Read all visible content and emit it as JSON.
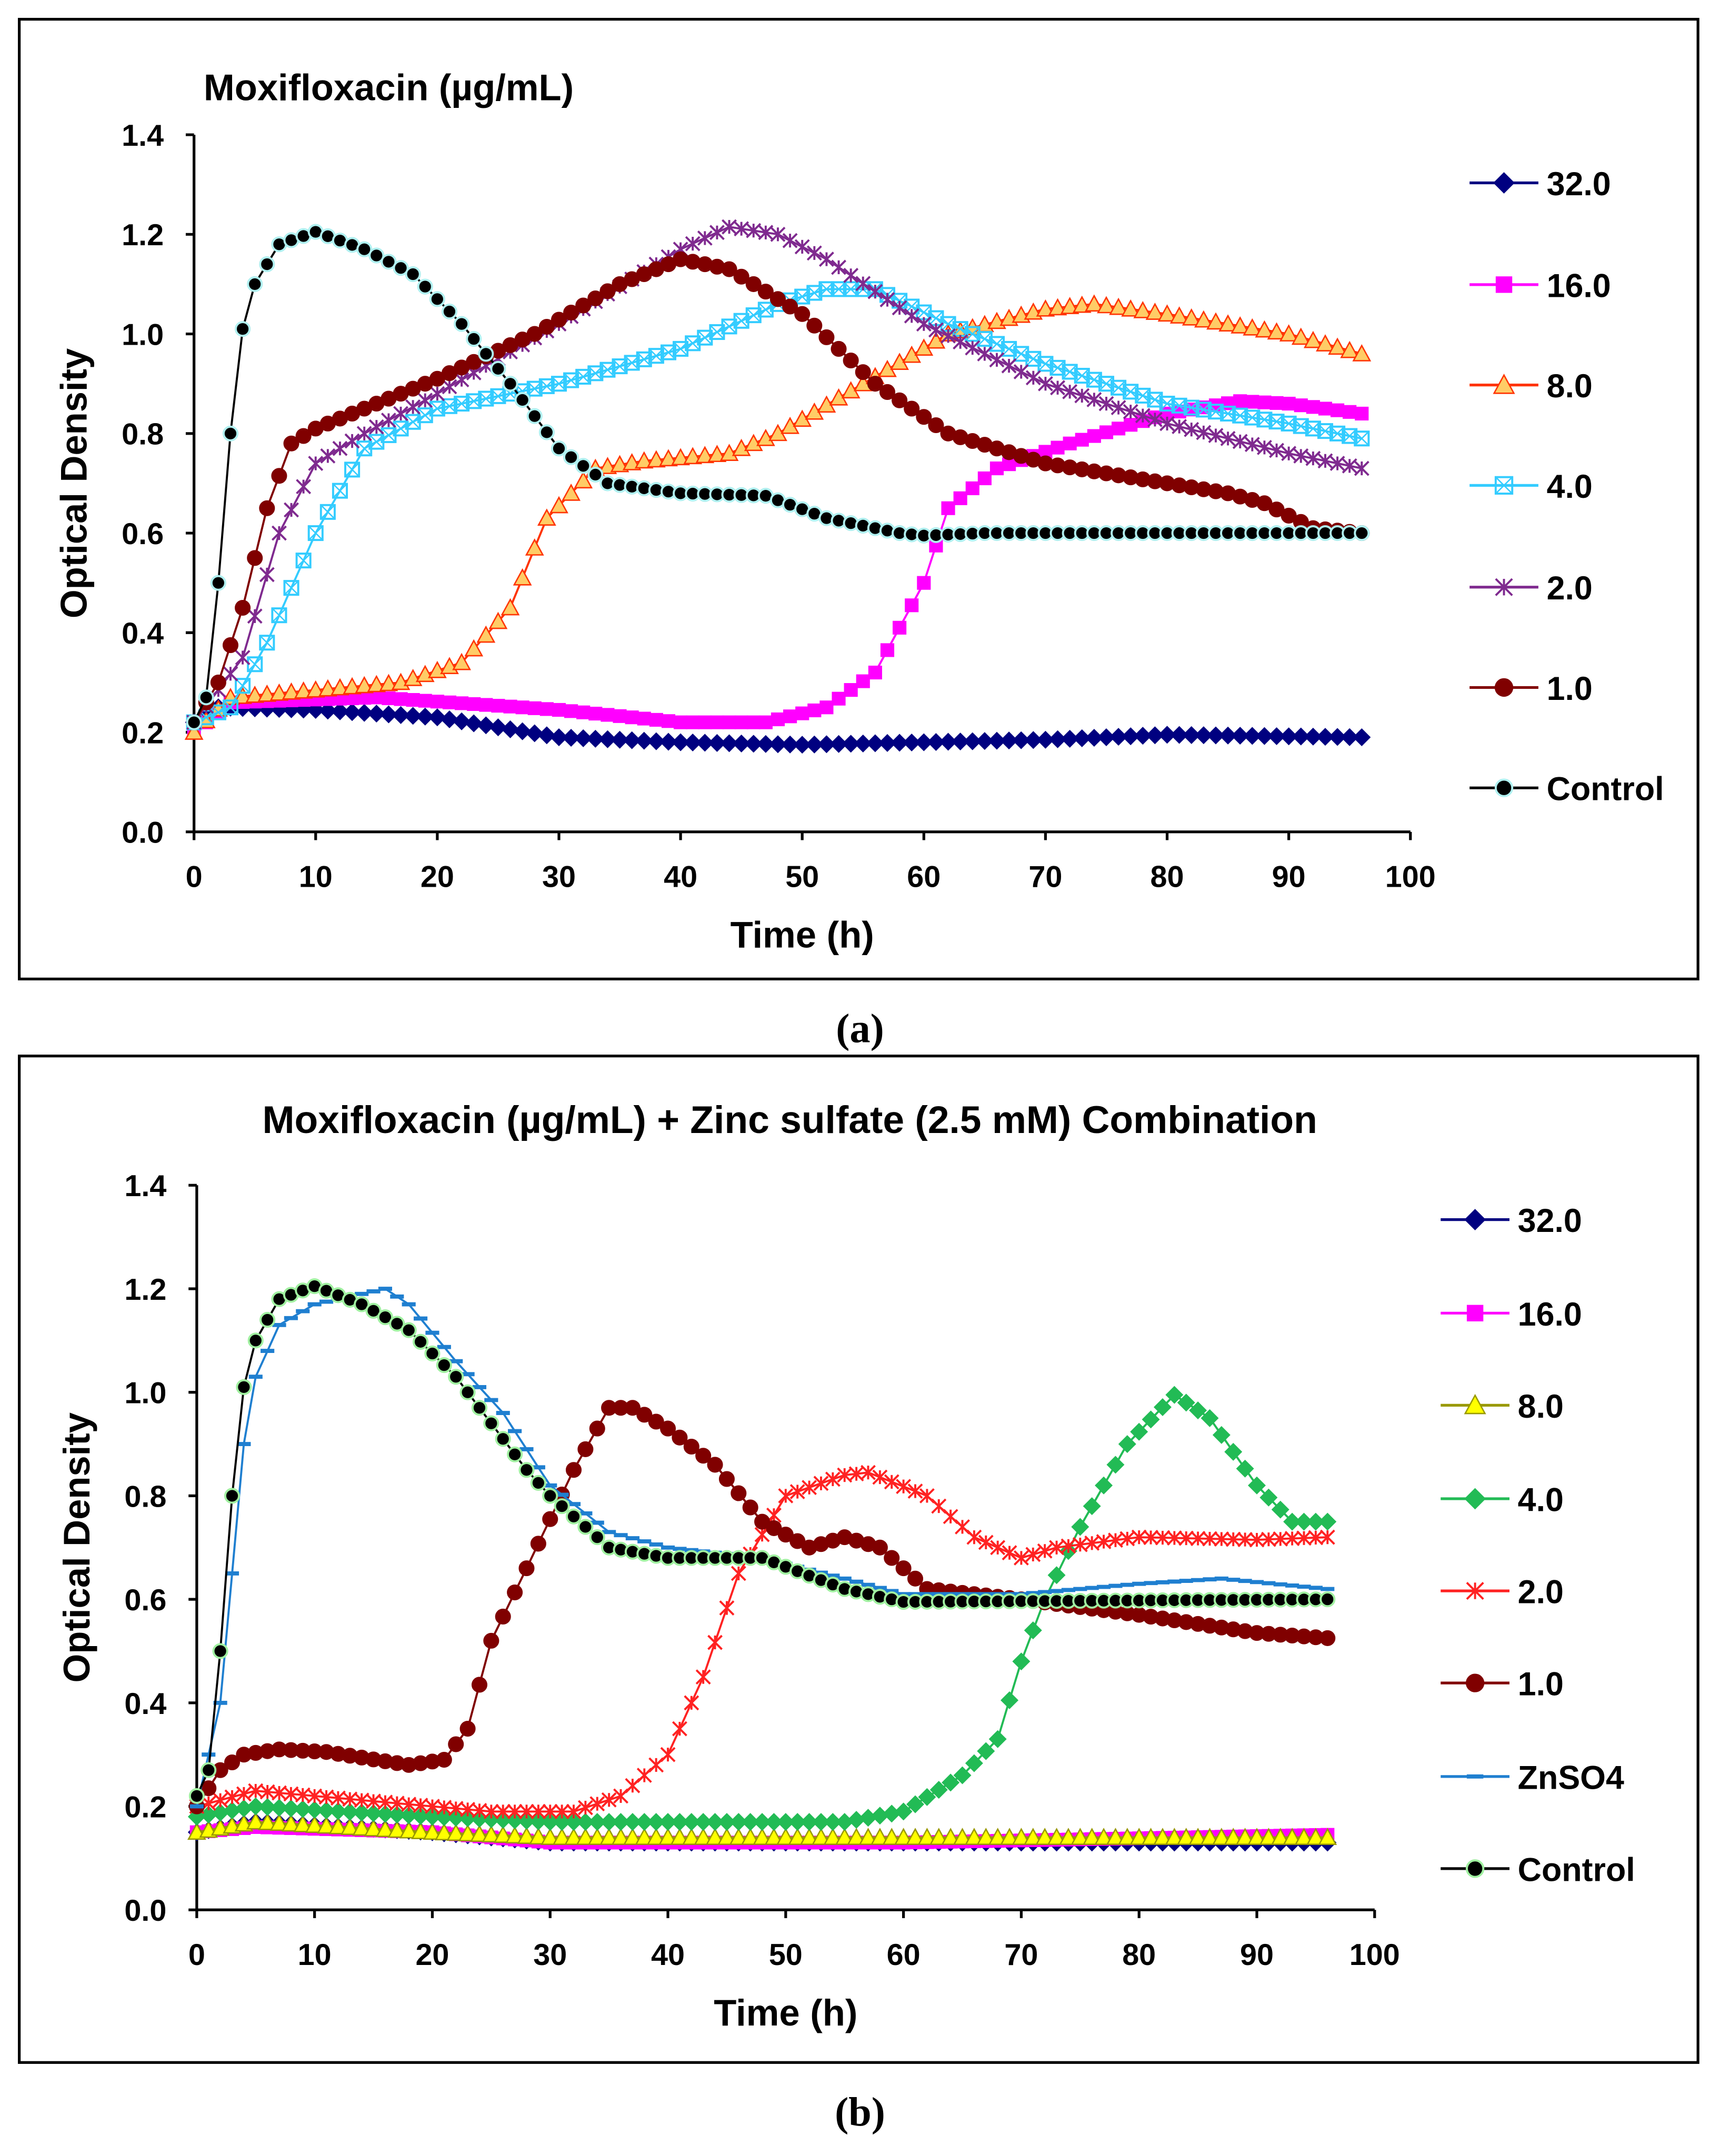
{
  "captions": [
    "(a)",
    "(b)"
  ],
  "chart_data": [
    {
      "type": "line",
      "title": "Moxifloxacin (µg/mL)",
      "xlabel": "Time (h)",
      "ylabel": "Optical Density",
      "xlim": [
        0,
        100
      ],
      "ylim": [
        0,
        1.4
      ],
      "xticks": [
        "0",
        "10",
        "20",
        "30",
        "40",
        "50",
        "60",
        "70",
        "80",
        "90",
        "100"
      ],
      "yticks": [
        "0.0",
        "0.2",
        "0.4",
        "0.6",
        "0.8",
        "1.0",
        "1.2",
        "1.4"
      ],
      "legend_position": "right",
      "series": [
        {
          "name": "32.0",
          "color": "#000080",
          "marker": "diamond",
          "points": [
            [
              0,
              0.22
            ],
            [
              2,
              0.25
            ],
            [
              10,
              0.245
            ],
            [
              20,
              0.23
            ],
            [
              30,
              0.19
            ],
            [
              40,
              0.18
            ],
            [
              50,
              0.175
            ],
            [
              60,
              0.18
            ],
            [
              70,
              0.185
            ],
            [
              80,
              0.195
            ],
            [
              96,
              0.19
            ]
          ]
        },
        {
          "name": "16.0",
          "color": "#ff00ff",
          "marker": "square",
          "points": [
            [
              0,
              0.2
            ],
            [
              3,
              0.26
            ],
            [
              15,
              0.27
            ],
            [
              30,
              0.245
            ],
            [
              40,
              0.22
            ],
            [
              47,
              0.22
            ],
            [
              52,
              0.25
            ],
            [
              56,
              0.32
            ],
            [
              60,
              0.5
            ],
            [
              62,
              0.65
            ],
            [
              66,
              0.73
            ],
            [
              72,
              0.78
            ],
            [
              80,
              0.84
            ],
            [
              86,
              0.865
            ],
            [
              90,
              0.86
            ],
            [
              96,
              0.84
            ]
          ]
        },
        {
          "name": "8.0",
          "color": "#ff3300",
          "marker": "triangle",
          "fill": "#ffcc66",
          "points": [
            [
              0,
              0.2
            ],
            [
              3,
              0.27
            ],
            [
              10,
              0.285
            ],
            [
              17,
              0.3
            ],
            [
              22,
              0.34
            ],
            [
              26,
              0.45
            ],
            [
              29,
              0.63
            ],
            [
              33,
              0.73
            ],
            [
              37,
              0.745
            ],
            [
              44,
              0.76
            ],
            [
              48,
              0.8
            ],
            [
              55,
              0.9
            ],
            [
              62,
              1.0
            ],
            [
              70,
              1.05
            ],
            [
              74,
              1.06
            ],
            [
              80,
              1.04
            ],
            [
              90,
              1.0
            ],
            [
              96,
              0.96
            ]
          ]
        },
        {
          "name": "4.0",
          "color": "#33ccff",
          "marker": "xsquare",
          "points": [
            [
              0,
              0.22
            ],
            [
              3,
              0.25
            ],
            [
              6,
              0.38
            ],
            [
              10,
              0.6
            ],
            [
              14,
              0.77
            ],
            [
              20,
              0.85
            ],
            [
              30,
              0.9
            ],
            [
              40,
              0.97
            ],
            [
              48,
              1.06
            ],
            [
              52,
              1.09
            ],
            [
              56,
              1.09
            ],
            [
              62,
              1.02
            ],
            [
              70,
              0.94
            ],
            [
              80,
              0.86
            ],
            [
              90,
              0.82
            ],
            [
              96,
              0.79
            ]
          ]
        },
        {
          "name": "2.0",
          "color": "#7f2a8f",
          "marker": "star",
          "points": [
            [
              0,
              0.22
            ],
            [
              4,
              0.35
            ],
            [
              7,
              0.6
            ],
            [
              10,
              0.74
            ],
            [
              14,
              0.8
            ],
            [
              20,
              0.88
            ],
            [
              30,
              1.02
            ],
            [
              40,
              1.17
            ],
            [
              44,
              1.215
            ],
            [
              48,
              1.2
            ],
            [
              52,
              1.15
            ],
            [
              60,
              1.02
            ],
            [
              70,
              0.9
            ],
            [
              80,
              0.82
            ],
            [
              90,
              0.76
            ],
            [
              96,
              0.73
            ]
          ]
        },
        {
          "name": "1.0",
          "color": "#800000",
          "marker": "circle",
          "points": [
            [
              0,
              0.22
            ],
            [
              2,
              0.3
            ],
            [
              4,
              0.45
            ],
            [
              6,
              0.65
            ],
            [
              8,
              0.78
            ],
            [
              10,
              0.81
            ],
            [
              15,
              0.86
            ],
            [
              20,
              0.91
            ],
            [
              28,
              1.0
            ],
            [
              35,
              1.1
            ],
            [
              40,
              1.15
            ],
            [
              44,
              1.13
            ],
            [
              50,
              1.04
            ],
            [
              56,
              0.9
            ],
            [
              62,
              0.8
            ],
            [
              70,
              0.74
            ],
            [
              80,
              0.7
            ],
            [
              85,
              0.68
            ],
            [
              88,
              0.66
            ],
            [
              92,
              0.61
            ],
            [
              96,
              0.6
            ]
          ]
        },
        {
          "name": "Control",
          "color": "#000000",
          "marker": "circle",
          "outline": "#b0f0f0",
          "points": [
            [
              0,
              0.22
            ],
            [
              1,
              0.27
            ],
            [
              2,
              0.5
            ],
            [
              3,
              0.8
            ],
            [
              4,
              1.01
            ],
            [
              5,
              1.1
            ],
            [
              7,
              1.18
            ],
            [
              10,
              1.205
            ],
            [
              14,
              1.17
            ],
            [
              18,
              1.12
            ],
            [
              22,
              1.02
            ],
            [
              26,
              0.9
            ],
            [
              30,
              0.77
            ],
            [
              34,
              0.7
            ],
            [
              40,
              0.68
            ],
            [
              47,
              0.675
            ],
            [
              52,
              0.63
            ],
            [
              58,
              0.6
            ],
            [
              60,
              0.595
            ],
            [
              65,
              0.6
            ],
            [
              96,
              0.6
            ]
          ]
        }
      ]
    },
    {
      "type": "line",
      "title": "Moxifloxacin (µg/mL) + Zinc sulfate (2.5 mM) Combination",
      "xlabel": "Time (h)",
      "ylabel": "Optical Density",
      "xlim": [
        0,
        100
      ],
      "ylim": [
        0,
        1.4
      ],
      "xticks": [
        "0",
        "10",
        "20",
        "30",
        "40",
        "50",
        "60",
        "70",
        "80",
        "90",
        "100"
      ],
      "yticks": [
        "0.0",
        "0.2",
        "0.4",
        "0.6",
        "0.8",
        "1.0",
        "1.2",
        "1.4"
      ],
      "legend_position": "right",
      "series": [
        {
          "name": "32.0",
          "color": "#000080",
          "marker": "diamond",
          "points": [
            [
              0,
              0.15
            ],
            [
              5,
              0.17
            ],
            [
              20,
              0.15
            ],
            [
              30,
              0.13
            ],
            [
              96,
              0.13
            ]
          ]
        },
        {
          "name": "16.0",
          "color": "#ff00ff",
          "marker": "square",
          "points": [
            [
              0,
              0.15
            ],
            [
              5,
              0.16
            ],
            [
              20,
              0.15
            ],
            [
              30,
              0.13
            ],
            [
              60,
              0.13
            ],
            [
              96,
              0.145
            ]
          ]
        },
        {
          "name": "8.0",
          "color": "#999900",
          "marker": "triangle",
          "fill": "#ffff00",
          "points": [
            [
              0,
              0.15
            ],
            [
              5,
              0.17
            ],
            [
              20,
              0.15
            ],
            [
              30,
              0.14
            ],
            [
              96,
              0.14
            ]
          ]
        },
        {
          "name": "4.0",
          "color": "#22bb55",
          "marker": "diamond",
          "points": [
            [
              0,
              0.18
            ],
            [
              5,
              0.2
            ],
            [
              20,
              0.18
            ],
            [
              30,
              0.17
            ],
            [
              55,
              0.17
            ],
            [
              60,
              0.19
            ],
            [
              65,
              0.26
            ],
            [
              68,
              0.33
            ],
            [
              70,
              0.48
            ],
            [
              72,
              0.6
            ],
            [
              75,
              0.74
            ],
            [
              79,
              0.9
            ],
            [
              83,
              0.995
            ],
            [
              86,
              0.95
            ],
            [
              90,
              0.82
            ],
            [
              93,
              0.75
            ],
            [
              96,
              0.75
            ]
          ]
        },
        {
          "name": "2.0",
          "color": "#ff2222",
          "marker": "star",
          "points": [
            [
              0,
              0.2
            ],
            [
              5,
              0.23
            ],
            [
              15,
              0.21
            ],
            [
              25,
              0.19
            ],
            [
              32,
              0.19
            ],
            [
              36,
              0.22
            ],
            [
              40,
              0.3
            ],
            [
              43,
              0.45
            ],
            [
              46,
              0.65
            ],
            [
              50,
              0.8
            ],
            [
              55,
              0.84
            ],
            [
              57,
              0.845
            ],
            [
              62,
              0.8
            ],
            [
              66,
              0.72
            ],
            [
              70,
              0.68
            ],
            [
              73,
              0.7
            ],
            [
              80,
              0.72
            ],
            [
              90,
              0.715
            ],
            [
              96,
              0.72
            ]
          ]
        },
        {
          "name": "1.0",
          "color": "#800000",
          "marker": "circle",
          "points": [
            [
              0,
              0.2
            ],
            [
              2,
              0.27
            ],
            [
              4,
              0.3
            ],
            [
              7,
              0.31
            ],
            [
              11,
              0.305
            ],
            [
              18,
              0.28
            ],
            [
              21,
              0.29
            ],
            [
              23,
              0.35
            ],
            [
              25,
              0.52
            ],
            [
              28,
              0.66
            ],
            [
              32,
              0.85
            ],
            [
              35,
              0.97
            ],
            [
              37,
              0.97
            ],
            [
              40,
              0.93
            ],
            [
              44,
              0.86
            ],
            [
              48,
              0.75
            ],
            [
              52,
              0.7
            ],
            [
              55,
              0.72
            ],
            [
              58,
              0.7
            ],
            [
              62,
              0.62
            ],
            [
              70,
              0.6
            ],
            [
              80,
              0.57
            ],
            [
              90,
              0.535
            ],
            [
              96,
              0.525
            ]
          ]
        },
        {
          "name": "ZnSO4",
          "color": "#1f7fd0",
          "marker": "dash",
          "points": [
            [
              0,
              0.2
            ],
            [
              2,
              0.4
            ],
            [
              3,
              0.65
            ],
            [
              4,
              0.9
            ],
            [
              5,
              1.03
            ],
            [
              7,
              1.13
            ],
            [
              10,
              1.17
            ],
            [
              16,
              1.2
            ],
            [
              18,
              1.17
            ],
            [
              22,
              1.06
            ],
            [
              26,
              0.96
            ],
            [
              30,
              0.82
            ],
            [
              35,
              0.73
            ],
            [
              40,
              0.7
            ],
            [
              48,
              0.68
            ],
            [
              55,
              0.64
            ],
            [
              60,
              0.61
            ],
            [
              70,
              0.61
            ],
            [
              80,
              0.63
            ],
            [
              87,
              0.64
            ],
            [
              96,
              0.62
            ]
          ]
        },
        {
          "name": "Control",
          "color": "#000000",
          "marker": "circle",
          "outline": "#a0f0a0",
          "points": [
            [
              0,
              0.22
            ],
            [
              1,
              0.27
            ],
            [
              2,
              0.5
            ],
            [
              3,
              0.8
            ],
            [
              4,
              1.01
            ],
            [
              5,
              1.1
            ],
            [
              7,
              1.18
            ],
            [
              10,
              1.205
            ],
            [
              14,
              1.17
            ],
            [
              18,
              1.12
            ],
            [
              22,
              1.03
            ],
            [
              28,
              0.85
            ],
            [
              30,
              0.8
            ],
            [
              35,
              0.7
            ],
            [
              40,
              0.68
            ],
            [
              48,
              0.68
            ],
            [
              55,
              0.62
            ],
            [
              60,
              0.595
            ],
            [
              96,
              0.6
            ]
          ]
        }
      ]
    }
  ]
}
